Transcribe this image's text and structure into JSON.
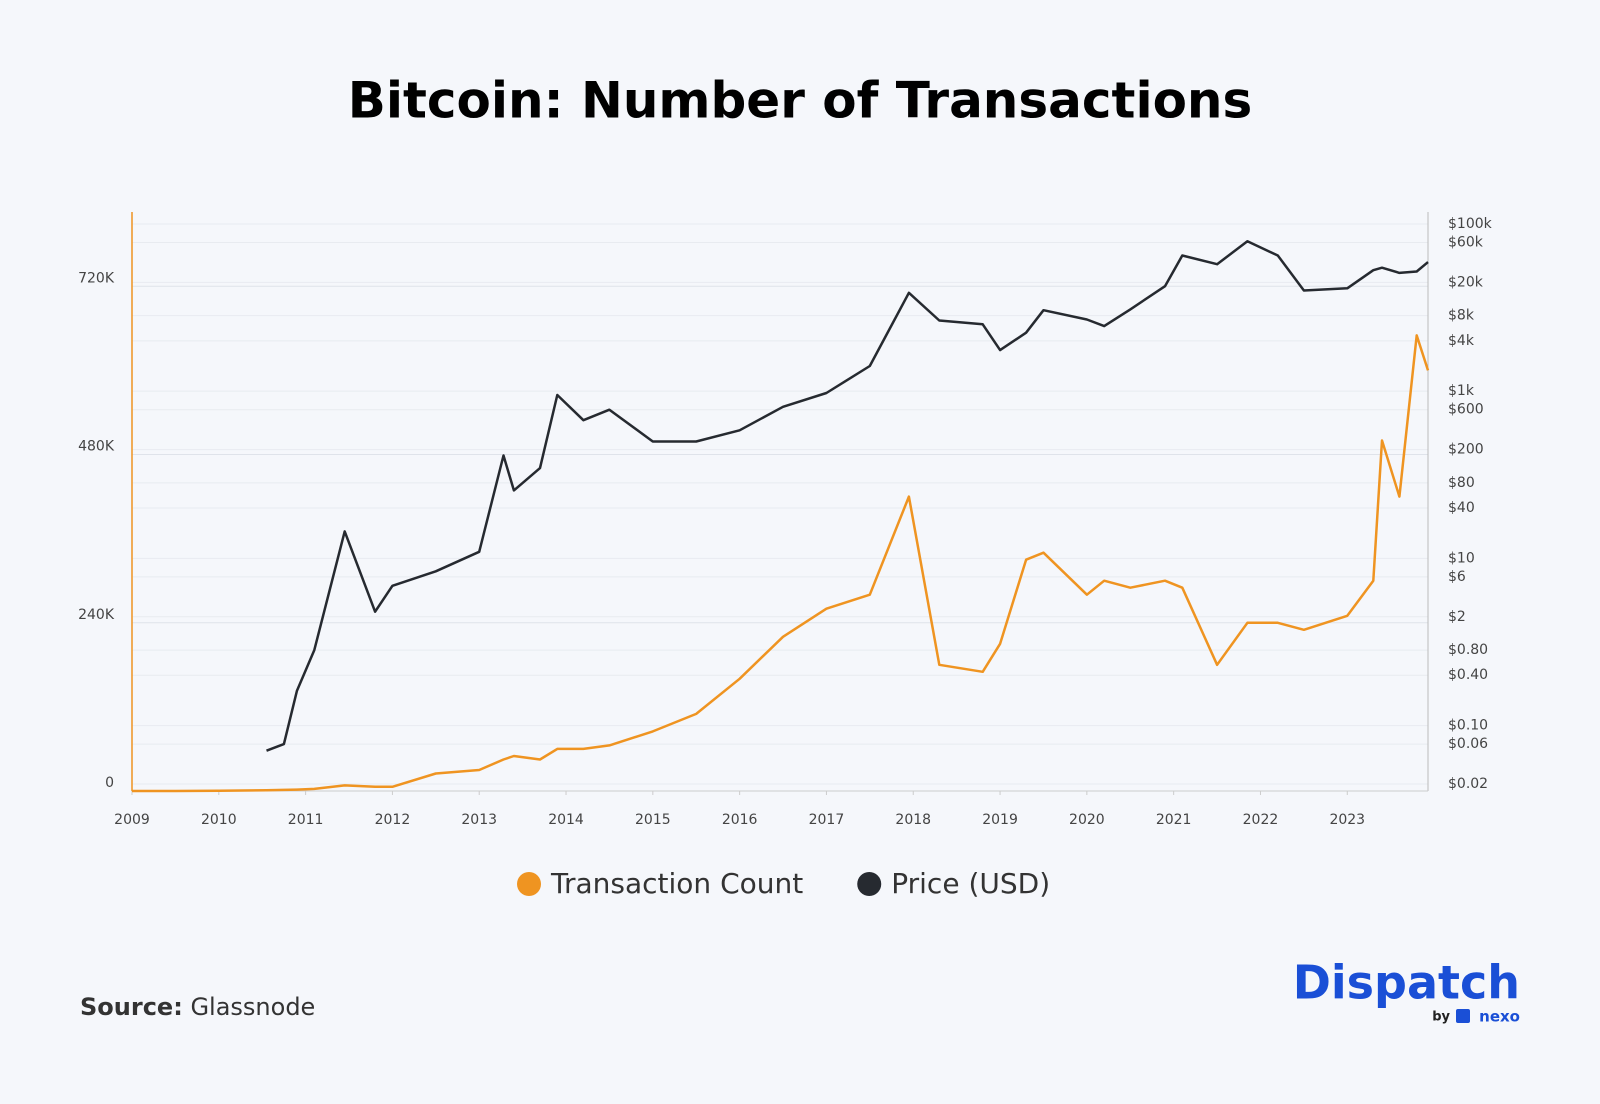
{
  "chart_data": {
    "type": "line",
    "title": "Bitcoin: Number of Transactions",
    "x": [
      2009,
      2009.5,
      2010,
      2010.55,
      2010.75,
      2010.9,
      2011.1,
      2011.45,
      2011.8,
      2012,
      2012.5,
      2013,
      2013.28,
      2013.4,
      2013.7,
      2013.9,
      2014.2,
      2014.5,
      2015,
      2015.5,
      2016,
      2016.5,
      2017,
      2017.5,
      2017.95,
      2018.3,
      2018.8,
      2019,
      2019.3,
      2019.5,
      2020,
      2020.2,
      2020.5,
      2020.9,
      2021.1,
      2021.5,
      2021.85,
      2022.2,
      2022.5,
      2023,
      2023.3,
      2023.4,
      2023.6,
      2023.8,
      2023.93
    ],
    "series": [
      {
        "name": "Transaction Count",
        "color": "#ef9421",
        "axis": "y",
        "values": [
          0,
          0,
          300,
          1000,
          1500,
          2000,
          3000,
          8000,
          6000,
          6000,
          25000,
          30000,
          45000,
          50000,
          45000,
          60000,
          60000,
          65000,
          85000,
          110000,
          160000,
          220000,
          260000,
          280000,
          420000,
          180000,
          170000,
          210000,
          330000,
          340000,
          280000,
          300000,
          290000,
          300000,
          290000,
          180000,
          240000,
          240000,
          230000,
          250000,
          300000,
          500000,
          420000,
          650000,
          600000
        ]
      },
      {
        "name": "Price (USD)",
        "color": "#262a30",
        "axis": "y2",
        "values": [
          null,
          null,
          null,
          0.05,
          0.06,
          0.26,
          0.8,
          21,
          2.3,
          4.7,
          7,
          12,
          170,
          65,
          120,
          900,
          450,
          600,
          250,
          250,
          340,
          650,
          950,
          2000,
          15000,
          7000,
          6300,
          3100,
          5000,
          9300,
          7200,
          6000,
          9500,
          18000,
          42000,
          33000,
          62000,
          42000,
          16000,
          17000,
          28000,
          30000,
          26000,
          27000,
          35000
        ]
      }
    ],
    "xlim": [
      2009,
      2023.93
    ],
    "xticks": [
      2009,
      2010,
      2011,
      2012,
      2013,
      2014,
      2015,
      2016,
      2017,
      2018,
      2019,
      2020,
      2021,
      2022,
      2023
    ],
    "ylim": [
      0,
      826000
    ],
    "yticks": [
      0,
      {
        "value": 240000,
        "label": "240K"
      },
      {
        "value": 480000,
        "label": "480K"
      },
      {
        "value": 720000,
        "label": "720K"
      }
    ],
    "y2lim": [
      0.0165,
      139000
    ],
    "y2_log": true,
    "y2ticks": [
      {
        "value": 0.02,
        "label": "$0.02"
      },
      {
        "value": 0.06,
        "label": "$0.06"
      },
      {
        "value": 0.1,
        "label": "$0.10"
      },
      {
        "value": 0.4,
        "label": "$0.40"
      },
      {
        "value": 0.8,
        "label": "$0.80"
      },
      {
        "value": 2,
        "label": "$2"
      },
      {
        "value": 6,
        "label": "$6"
      },
      {
        "value": 10,
        "label": "$10"
      },
      {
        "value": 40,
        "label": "$40"
      },
      {
        "value": 80,
        "label": "$80"
      },
      {
        "value": 200,
        "label": "$200"
      },
      {
        "value": 600,
        "label": "$600"
      },
      {
        "value": 1000,
        "label": "$1k"
      },
      {
        "value": 4000,
        "label": "$4k"
      },
      {
        "value": 8000,
        "label": "$8k"
      },
      {
        "value": 20000,
        "label": "$20k"
      },
      {
        "value": 60000,
        "label": "$60k"
      },
      {
        "value": 100000,
        "label": "$100k"
      }
    ],
    "grid": true,
    "legend": "bottom",
    "source_label": "Source:",
    "source": "Glassnode",
    "brand": "Dispatch",
    "brand_by": "by",
    "brand_partner": "nexo"
  }
}
